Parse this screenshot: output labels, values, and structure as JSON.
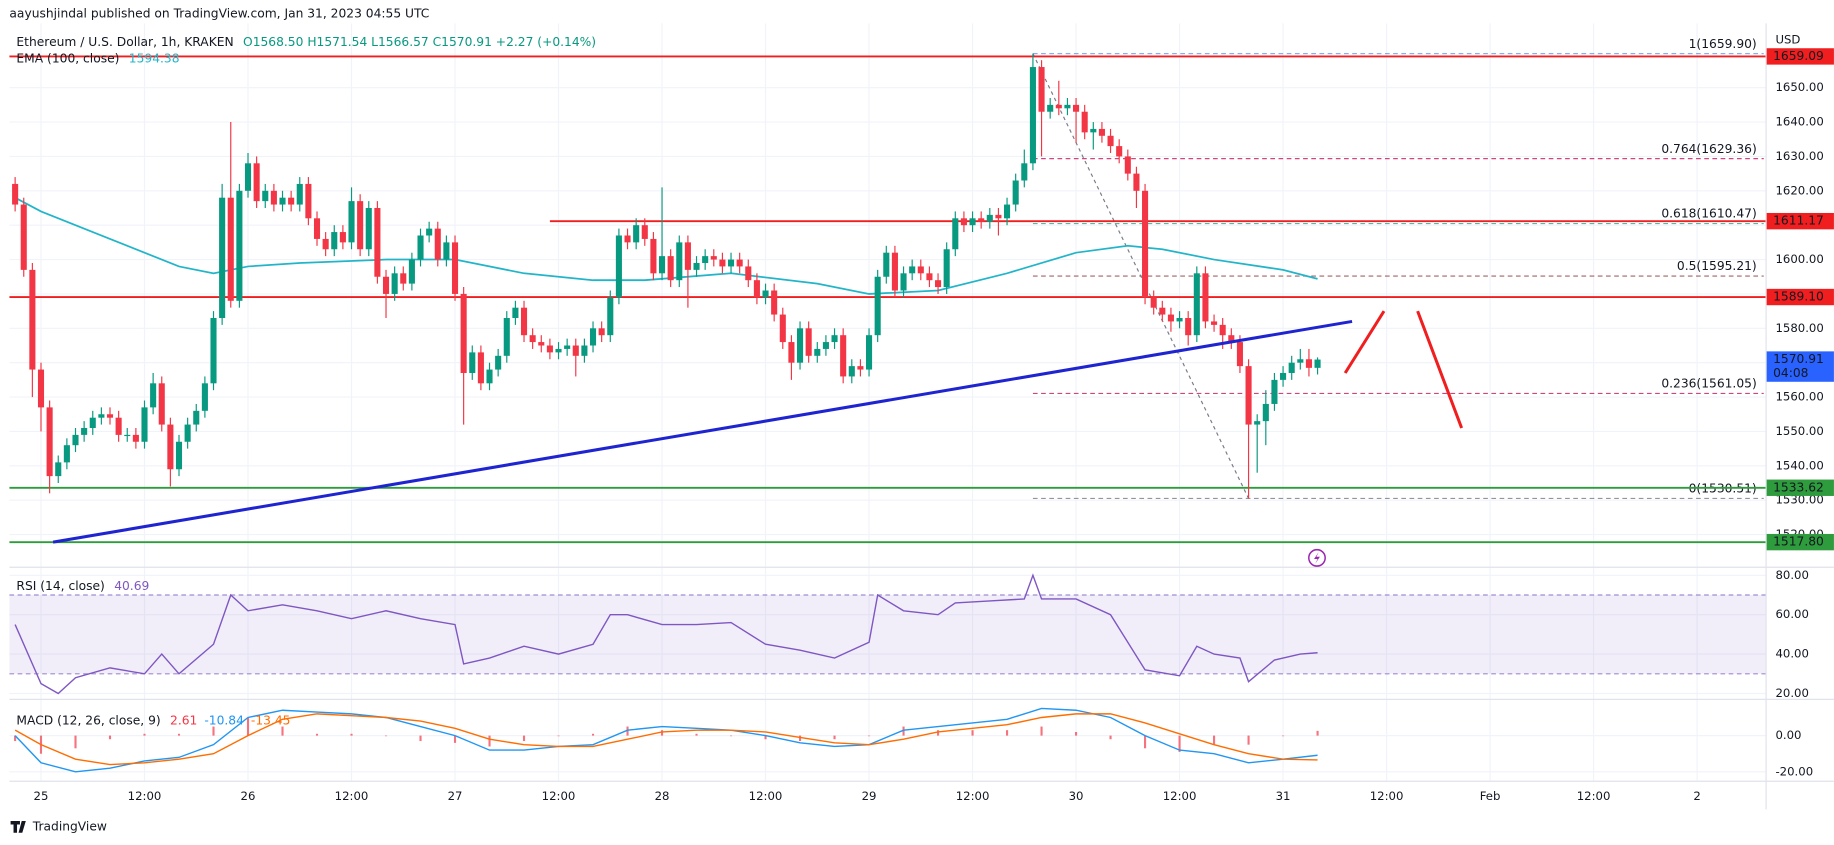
{
  "header": {
    "text": "aayushjindal published on TradingView.com, Jan 31, 2023 04:55 UTC"
  },
  "footer": {
    "brand": "TradingView"
  },
  "chart_data": {
    "type": "candlestick",
    "title": "Ethereum / U.S. Dollar, 1h, KRAKEN",
    "ohlc_text": "O1568.50 H1571.54 L1566.57 C1570.91 +2.27 (+0.14%)",
    "currency": "USD",
    "up_color": "#089981",
    "down_color": "#f23645",
    "xlim": [
      -3.66,
      200
    ],
    "xticks": [
      {
        "value": 0,
        "label": "25"
      },
      {
        "value": 12,
        "label": "12:00"
      },
      {
        "value": 24,
        "label": "26"
      },
      {
        "value": 36,
        "label": "12:00"
      },
      {
        "value": 48,
        "label": "27"
      },
      {
        "value": 60,
        "label": "12:00"
      },
      {
        "value": 72,
        "label": "28"
      },
      {
        "value": 84,
        "label": "12:00"
      },
      {
        "value": 96,
        "label": "29"
      },
      {
        "value": 108,
        "label": "12:00"
      },
      {
        "value": 120,
        "label": "30"
      },
      {
        "value": 132,
        "label": "12:00"
      },
      {
        "value": 144,
        "label": "31"
      },
      {
        "value": 156,
        "label": "12:00"
      },
      {
        "value": 168,
        "label": "Feb"
      },
      {
        "value": 180,
        "label": "12:00"
      },
      {
        "value": 192,
        "label": "2"
      }
    ],
    "ylim": [
      1510.5,
      1668.7
    ],
    "yticks": [
      {
        "value": 1650,
        "label": "1650.00"
      },
      {
        "value": 1640,
        "label": "1640.00"
      },
      {
        "value": 1630,
        "label": "1630.00"
      },
      {
        "value": 1620,
        "label": "1620.00"
      },
      {
        "value": 1610,
        "label": "1610.00"
      },
      {
        "value": 1600,
        "label": "1600.00"
      },
      {
        "value": 1590,
        "label": "1590.00"
      },
      {
        "value": 1580,
        "label": "1580.00"
      },
      {
        "value": 1570,
        "label": "1570.00"
      },
      {
        "value": 1560,
        "label": "1560.00"
      },
      {
        "value": 1550,
        "label": "1550.00"
      },
      {
        "value": 1540,
        "label": "1540.00"
      },
      {
        "value": 1530,
        "label": "1530.00"
      },
      {
        "value": 1520,
        "label": "1520.00"
      }
    ],
    "grid": true,
    "x": [
      -3,
      -2,
      -1,
      0,
      1,
      2,
      3,
      4,
      5,
      6,
      7,
      8,
      9,
      10,
      11,
      12,
      13,
      14,
      15,
      16,
      17,
      18,
      19,
      20,
      21,
      22,
      23,
      24,
      25,
      26,
      27,
      28,
      29,
      30,
      31,
      32,
      33,
      34,
      35,
      36,
      37,
      38,
      39,
      40,
      41,
      42,
      43,
      44,
      45,
      46,
      47,
      48,
      49,
      50,
      51,
      52,
      53,
      54,
      55,
      56,
      57,
      58,
      59,
      60,
      61,
      62,
      63,
      64,
      65,
      66,
      67,
      68,
      69,
      70,
      71,
      72,
      73,
      74,
      75,
      76,
      77,
      78,
      79,
      80,
      81,
      82,
      83,
      84,
      85,
      86,
      87,
      88,
      89,
      90,
      91,
      92,
      93,
      94,
      95,
      96,
      97,
      98,
      99,
      100,
      101,
      102,
      103,
      104,
      105,
      106,
      107,
      108,
      109,
      110,
      111,
      112,
      113,
      114,
      115,
      116,
      117,
      118,
      119,
      120,
      121,
      122,
      123,
      124,
      125,
      126,
      127,
      128,
      129,
      130,
      131,
      132,
      133,
      134,
      135,
      136,
      137,
      138,
      139,
      140,
      141,
      142,
      143,
      144,
      145,
      146,
      147,
      148
    ],
    "open": [
      1622,
      1616,
      1597,
      1568,
      1557,
      1537,
      1541,
      1546,
      1549,
      1551,
      1554,
      1555,
      1554,
      1549,
      1549,
      1547,
      1557,
      1564,
      1552,
      1539,
      1547,
      1552,
      1556,
      1564,
      1583,
      1618,
      1588,
      1620,
      1628,
      1617,
      1620,
      1616,
      1618,
      1616,
      1622,
      1612,
      1606,
      1603,
      1608,
      1605,
      1617,
      1603,
      1615,
      1595,
      1590,
      1596,
      1593,
      1600,
      1607,
      1609,
      1600,
      1605,
      1590,
      1567,
      1573,
      1564,
      1568,
      1572,
      1583,
      1586,
      1578,
      1576,
      1575,
      1573,
      1574,
      1575,
      1572,
      1575,
      1580,
      1578,
      1589,
      1607,
      1605,
      1610,
      1606,
      1596,
      1601,
      1594,
      1605,
      1597,
      1599,
      1601,
      1600,
      1598,
      1600,
      1598,
      1594,
      1589,
      1591,
      1584,
      1576,
      1570,
      1580,
      1572,
      1574,
      1576,
      1578,
      1566,
      1569,
      1568,
      1578,
      1595,
      1602,
      1591,
      1596,
      1598,
      1596,
      1594,
      1592,
      1603,
      1612,
      1610,
      1612,
      1611,
      1613,
      1612,
      1616,
      1623,
      1628,
      1656,
      1643,
      1645,
      1644,
      1645,
      1643,
      1637,
      1638,
      1636,
      1633,
      1630,
      1625,
      1620,
      1589,
      1586,
      1584,
      1582,
      1583,
      1578,
      1596,
      1582,
      1581,
      1578,
      1576,
      1569,
      1552,
      1553,
      1558,
      1565,
      1567,
      1570,
      1571,
      1568.5
    ],
    "high": [
      1624,
      1618,
      1599,
      1570,
      1559,
      1543,
      1548,
      1551,
      1553,
      1556,
      1557,
      1557,
      1556,
      1551,
      1551,
      1559,
      1567,
      1566,
      1554,
      1549,
      1554,
      1558,
      1566,
      1585,
      1622,
      1640,
      1622,
      1631,
      1630,
      1622,
      1622,
      1620,
      1620,
      1624,
      1624,
      1614,
      1608,
      1610,
      1610,
      1621,
      1619,
      1617,
      1617,
      1597,
      1598,
      1598,
      1602,
      1609,
      1611,
      1611,
      1607,
      1607,
      1592,
      1575,
      1575,
      1570,
      1574,
      1585,
      1588,
      1588,
      1580,
      1578,
      1577,
      1576,
      1577,
      1577,
      1577,
      1582,
      1582,
      1591,
      1609,
      1609,
      1612,
      1612,
      1608,
      1621,
      1603,
      1607,
      1607,
      1601,
      1603,
      1603,
      1602,
      1602,
      1602,
      1600,
      1596,
      1593,
      1593,
      1586,
      1578,
      1582,
      1582,
      1576,
      1578,
      1580,
      1580,
      1571,
      1571,
      1580,
      1597,
      1604,
      1604,
      1598,
      1600,
      1600,
      1598,
      1596,
      1605,
      1614,
      1614,
      1614,
      1614,
      1615,
      1615,
      1618,
      1625,
      1632,
      1659.9,
      1658,
      1647,
      1652,
      1647,
      1647,
      1645,
      1640,
      1640,
      1638,
      1635,
      1632,
      1627,
      1622,
      1591,
      1588,
      1586,
      1585,
      1585,
      1598,
      1598,
      1584,
      1583,
      1580,
      1578,
      1571,
      1555,
      1562,
      1567,
      1569,
      1572,
      1574,
      1574,
      1571.54
    ],
    "low": [
      1614,
      1595,
      1560,
      1550,
      1532,
      1535,
      1539,
      1544,
      1547,
      1549,
      1552,
      1552,
      1547,
      1547,
      1545,
      1545,
      1555,
      1550,
      1534,
      1537,
      1545,
      1550,
      1554,
      1562,
      1581,
      1586,
      1586,
      1618,
      1615,
      1615,
      1614,
      1614,
      1614,
      1614,
      1610,
      1604,
      1601,
      1601,
      1603,
      1603,
      1601,
      1601,
      1593,
      1583,
      1588,
      1591,
      1591,
      1598,
      1605,
      1598,
      1598,
      1588,
      1552,
      1565,
      1562,
      1562,
      1566,
      1570,
      1581,
      1576,
      1574,
      1573,
      1571,
      1571,
      1572,
      1566,
      1570,
      1573,
      1576,
      1576,
      1587,
      1603,
      1603,
      1604,
      1594,
      1594,
      1592,
      1592,
      1586,
      1595,
      1597,
      1598,
      1596,
      1596,
      1596,
      1592,
      1587,
      1587,
      1582,
      1574,
      1565,
      1568,
      1570,
      1570,
      1572,
      1574,
      1564,
      1564,
      1566,
      1566,
      1576,
      1593,
      1589,
      1589,
      1594,
      1594,
      1592,
      1590,
      1590,
      1601,
      1608,
      1608,
      1609,
      1609,
      1607,
      1610,
      1614,
      1621,
      1626,
      1630,
      1641,
      1642,
      1642,
      1634,
      1635,
      1632,
      1634,
      1631,
      1628,
      1623,
      1615,
      1587,
      1584,
      1582,
      1579,
      1580,
      1575,
      1576,
      1580,
      1579,
      1574,
      1574,
      1567,
      1530.51,
      1538,
      1546,
      1556,
      1563,
      1565,
      1568,
      1566,
      1566.57
    ],
    "close": [
      1616,
      1597,
      1568,
      1557,
      1537,
      1541,
      1546,
      1549,
      1551,
      1554,
      1555,
      1554,
      1549,
      1549,
      1547,
      1557,
      1564,
      1552,
      1539,
      1547,
      1552,
      1556,
      1564,
      1583,
      1618,
      1588,
      1620,
      1628,
      1617,
      1620,
      1616,
      1618,
      1616,
      1622,
      1612,
      1606,
      1603,
      1608,
      1605,
      1617,
      1603,
      1615,
      1595,
      1590,
      1596,
      1593,
      1600,
      1607,
      1609,
      1600,
      1605,
      1590,
      1567,
      1573,
      1564,
      1568,
      1572,
      1583,
      1586,
      1578,
      1576,
      1575,
      1573,
      1574,
      1575,
      1572,
      1575,
      1580,
      1578,
      1589,
      1607,
      1605,
      1610,
      1606,
      1596,
      1601,
      1594,
      1605,
      1597,
      1599,
      1601,
      1600,
      1598,
      1600,
      1598,
      1594,
      1589,
      1591,
      1584,
      1576,
      1570,
      1580,
      1572,
      1574,
      1576,
      1578,
      1566,
      1569,
      1568,
      1578,
      1595,
      1602,
      1591,
      1596,
      1598,
      1596,
      1594,
      1592,
      1603,
      1612,
      1610,
      1612,
      1611,
      1613,
      1612,
      1616,
      1623,
      1628,
      1656,
      1643,
      1645,
      1644,
      1645,
      1643,
      1637,
      1638,
      1636,
      1633,
      1630,
      1625,
      1620,
      1589,
      1586,
      1584,
      1582,
      1583,
      1578,
      1596,
      1582,
      1581,
      1578,
      1576,
      1569,
      1552,
      1553,
      1558,
      1565,
      1567,
      1570,
      1571,
      1568.5,
      1570.91
    ],
    "last_price": {
      "value": 1570.91,
      "countdown": "04:08",
      "color": "#2962ff"
    },
    "ema": {
      "name": "EMA (100, close)",
      "color": "#22b5c9",
      "x": [
        -3,
        0,
        8,
        16,
        20,
        24,
        30,
        40,
        48,
        56,
        64,
        70,
        80,
        90,
        96,
        104,
        112,
        120,
        126,
        130,
        136,
        144,
        148
      ],
      "values": [
        1618,
        1614,
        1606,
        1598,
        1596,
        1598,
        1599,
        1600,
        1600,
        1596,
        1594,
        1594,
        1596,
        1593,
        1590,
        1591,
        1596,
        1602,
        1604,
        1603,
        1600,
        1597,
        1594.38
      ]
    },
    "levels": [
      {
        "value": 1659.09,
        "label": "1659.09",
        "color": "#f01e1e"
      },
      {
        "value": 1611.17,
        "label": "1611.17",
        "color": "#f01e1e",
        "from": 59
      },
      {
        "value": 1589.1,
        "label": "1589.10",
        "color": "#f01e1e"
      },
      {
        "value": 1533.62,
        "label": "1533.62",
        "color": "#2e9b3c"
      },
      {
        "value": 1517.8,
        "label": "1517.80",
        "color": "#2e9b3c"
      }
    ],
    "fib": {
      "from": 115,
      "diagonal": {
        "x": [
          115,
          140
        ],
        "y": [
          1659.9,
          1530.51
        ]
      },
      "levels": [
        {
          "value": 1659.9,
          "label": "1(1659.90)",
          "color": "#5b9cf6"
        },
        {
          "value": 1629.36,
          "label": "0.764(1629.36)",
          "color": "#c2185b"
        },
        {
          "value": 1610.47,
          "label": "0.618(1610.47)",
          "color": "#22ab94"
        },
        {
          "value": 1595.21,
          "label": "0.5(1595.21)",
          "color": "#8a3f3f"
        },
        {
          "value": 1561.05,
          "label": "0.236(1561.05)",
          "color": "#c2185b"
        },
        {
          "value": 1530.51,
          "label": "0(1530.51)",
          "color": "#787b86"
        }
      ]
    },
    "trendline": {
      "color": "#1f24d1",
      "x": [
        1.4,
        152
      ],
      "y": [
        1517.8,
        1582
      ]
    },
    "projection": {
      "color": "#f01e1e",
      "lines": [
        {
          "x": [
            151.2,
            155.7
          ],
          "y": [
            1567,
            1585
          ]
        },
        {
          "x": [
            159.6,
            164.7
          ],
          "y": [
            1585,
            1551
          ]
        }
      ]
    },
    "rsi": {
      "name": "RSI (14, close)",
      "color": "#7e57c2",
      "ylim": [
        17.6,
        84.1
      ],
      "band": [
        30,
        70
      ],
      "yticks": [
        {
          "value": 80,
          "label": "80.00"
        },
        {
          "value": 60,
          "label": "60.00"
        },
        {
          "value": 40,
          "label": "40.00"
        },
        {
          "value": 20,
          "label": "20.00"
        }
      ],
      "x": [
        -3,
        0,
        2,
        4,
        8,
        12,
        14,
        16,
        20,
        22,
        24,
        28,
        32,
        36,
        40,
        44,
        48,
        49,
        52,
        56,
        60,
        64,
        66,
        68,
        72,
        76,
        80,
        84,
        88,
        92,
        96,
        97,
        100,
        104,
        106,
        110,
        114,
        115,
        116,
        120,
        124,
        128,
        132,
        134,
        136,
        139,
        140,
        143,
        146,
        148
      ],
      "values": [
        55,
        25,
        20,
        28,
        33,
        30,
        40,
        30,
        45,
        70,
        62,
        65,
        62,
        58,
        62,
        58,
        55,
        35,
        38,
        44,
        40,
        45,
        60,
        60,
        55,
        55,
        56,
        45,
        42,
        38,
        46,
        70,
        62,
        60,
        66,
        67,
        68,
        80,
        68,
        68,
        60,
        32,
        29,
        44,
        40,
        38,
        26,
        37,
        40,
        40.69
      ]
    },
    "macd": {
      "name": "MACD (12, 26, close, 9)",
      "ylim": [
        -25.2,
        18.7
      ],
      "yticks": [
        {
          "value": 0,
          "label": "0.00"
        },
        {
          "value": -20,
          "label": "-20.00"
        }
      ],
      "x": [
        -3,
        0,
        4,
        8,
        12,
        16,
        20,
        24,
        28,
        32,
        36,
        40,
        44,
        48,
        52,
        56,
        60,
        64,
        68,
        72,
        76,
        80,
        84,
        88,
        92,
        96,
        100,
        104,
        108,
        112,
        116,
        120,
        124,
        128,
        132,
        136,
        140,
        144,
        148
      ],
      "histogram": {
        "color": "#f23645",
        "values": [
          -3,
          -10,
          -7,
          -2,
          1,
          1,
          5,
          10,
          5,
          1,
          1,
          0,
          -3,
          -4,
          -6,
          -3,
          0,
          1,
          5,
          3,
          1,
          0,
          -2,
          -3,
          -2,
          0,
          5,
          3,
          3,
          3,
          5,
          2,
          -2,
          -7,
          -9,
          -5,
          -5,
          0,
          2.61
        ]
      },
      "macd_line": {
        "color": "#2196f3",
        "values": [
          0,
          -15,
          -20,
          -18,
          -14,
          -12,
          -5,
          10,
          14,
          13,
          12,
          10,
          5,
          0,
          -8,
          -8,
          -6,
          -5,
          3,
          5,
          4,
          3,
          0,
          -4,
          -6,
          -5,
          3,
          5,
          7,
          9,
          15,
          14,
          10,
          0,
          -8,
          -10,
          -15,
          -13,
          -10.84
        ]
      },
      "signal": {
        "color": "#ff6d00",
        "values": [
          3,
          -5,
          -13,
          -16,
          -15,
          -13,
          -10,
          0,
          9,
          12,
          11,
          10,
          8,
          4,
          -2,
          -5,
          -6,
          -6,
          -2,
          2,
          3,
          3,
          2,
          -1,
          -4,
          -5,
          -2,
          2,
          4,
          6,
          10,
          12,
          12,
          7,
          1,
          -5,
          -10,
          -13,
          -13.45
        ]
      }
    }
  }
}
